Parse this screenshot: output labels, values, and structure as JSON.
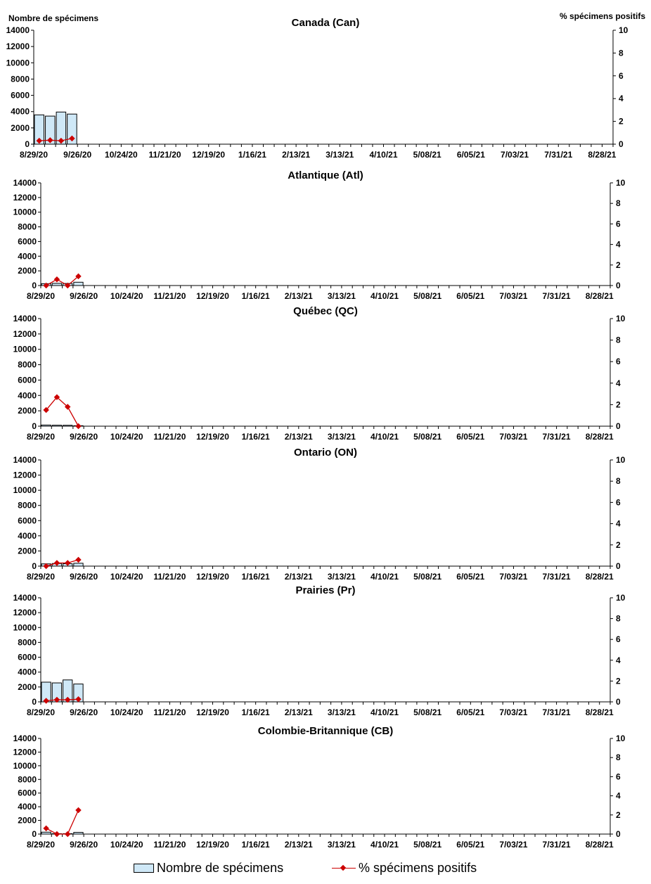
{
  "chart_data": [
    {
      "type": "bar+line",
      "title": "Canada (Can)",
      "ylabel_left": "Nombre de spécimens",
      "ylabel_right": "% spécimens positifs",
      "ylim_left": [
        0,
        14000
      ],
      "ylim_right": [
        0,
        10
      ],
      "left_ticks": [
        "0",
        "2000",
        "4000",
        "6000",
        "8000",
        "10000",
        "12000",
        "14000"
      ],
      "right_ticks": [
        "0",
        "2",
        "4",
        "6",
        "8",
        "10"
      ],
      "x_tick_labels": [
        "8/29/20",
        "9/26/20",
        "10/24/20",
        "11/21/20",
        "12/19/20",
        "1/16/21",
        "2/13/21",
        "3/13/21",
        "4/10/21",
        "5/08/21",
        "6/05/21",
        "7/03/21",
        "7/31/21",
        "8/28/21"
      ],
      "weeks": 53,
      "series": [
        {
          "name": "Nombre de spécimens",
          "type": "bar",
          "values": [
            3600,
            3450,
            3950,
            3700
          ]
        },
        {
          "name": "% spécimens positifs",
          "type": "line",
          "values": [
            0.3,
            0.35,
            0.3,
            0.5
          ]
        }
      ]
    },
    {
      "type": "bar+line",
      "title": "Atlantique (Atl)",
      "ylim_left": [
        0,
        14000
      ],
      "ylim_right": [
        0,
        10
      ],
      "left_ticks": [
        "0",
        "2000",
        "4000",
        "6000",
        "8000",
        "10000",
        "12000",
        "14000"
      ],
      "right_ticks": [
        "0",
        "2",
        "4",
        "6",
        "8",
        "10"
      ],
      "x_tick_labels": [
        "8/29/20",
        "9/26/20",
        "10/24/20",
        "11/21/20",
        "12/19/20",
        "1/16/21",
        "2/13/21",
        "3/13/21",
        "4/10/21",
        "5/08/21",
        "6/05/21",
        "7/03/21",
        "7/31/21",
        "8/28/21"
      ],
      "weeks": 53,
      "series": [
        {
          "name": "Nombre de spécimens",
          "type": "bar",
          "values": [
            250,
            300,
            280,
            450
          ]
        },
        {
          "name": "% spécimens positifs",
          "type": "line",
          "values": [
            0.0,
            0.6,
            0.0,
            0.9
          ]
        }
      ]
    },
    {
      "type": "bar+line",
      "title": "Québec (QC)",
      "ylim_left": [
        0,
        14000
      ],
      "ylim_right": [
        0,
        10
      ],
      "left_ticks": [
        "0",
        "2000",
        "4000",
        "6000",
        "8000",
        "10000",
        "12000",
        "14000"
      ],
      "right_ticks": [
        "0",
        "2",
        "4",
        "6",
        "8",
        "10"
      ],
      "x_tick_labels": [
        "8/29/20",
        "9/26/20",
        "10/24/20",
        "11/21/20",
        "12/19/20",
        "1/16/21",
        "2/13/21",
        "3/13/21",
        "4/10/21",
        "5/08/21",
        "6/05/21",
        "7/03/21",
        "7/31/21",
        "8/28/21"
      ],
      "weeks": 53,
      "series": [
        {
          "name": "Nombre de spécimens",
          "type": "bar",
          "values": [
            150,
            130,
            120,
            60
          ]
        },
        {
          "name": "% spécimens positifs",
          "type": "line",
          "values": [
            1.5,
            2.7,
            1.8,
            0.0
          ]
        }
      ]
    },
    {
      "type": "bar+line",
      "title": "Ontario (ON)",
      "ylim_left": [
        0,
        14000
      ],
      "ylim_right": [
        0,
        10
      ],
      "left_ticks": [
        "0",
        "2000",
        "4000",
        "6000",
        "8000",
        "10000",
        "12000",
        "14000"
      ],
      "right_ticks": [
        "0",
        "2",
        "4",
        "6",
        "8",
        "10"
      ],
      "x_tick_labels": [
        "8/29/20",
        "9/26/20",
        "10/24/20",
        "11/21/20",
        "12/19/20",
        "1/16/21",
        "2/13/21",
        "3/13/21",
        "4/10/21",
        "5/08/21",
        "6/05/21",
        "7/03/21",
        "7/31/21",
        "8/28/21"
      ],
      "weeks": 53,
      "series": [
        {
          "name": "Nombre de spécimens",
          "type": "bar",
          "values": [
            300,
            350,
            320,
            380
          ]
        },
        {
          "name": "% spécimens positifs",
          "type": "line",
          "values": [
            0.0,
            0.3,
            0.3,
            0.6
          ]
        }
      ]
    },
    {
      "type": "bar+line",
      "title": "Prairies (Pr)",
      "ylim_left": [
        0,
        14000
      ],
      "ylim_right": [
        0,
        10
      ],
      "left_ticks": [
        "0",
        "2000",
        "4000",
        "6000",
        "8000",
        "10000",
        "12000",
        "14000"
      ],
      "right_ticks": [
        "0",
        "2",
        "4",
        "6",
        "8",
        "10"
      ],
      "x_tick_labels": [
        "8/29/20",
        "9/26/20",
        "10/24/20",
        "11/21/20",
        "12/19/20",
        "1/16/21",
        "2/13/21",
        "3/13/21",
        "4/10/21",
        "5/08/21",
        "6/05/21",
        "7/03/21",
        "7/31/21",
        "8/28/21"
      ],
      "weeks": 53,
      "series": [
        {
          "name": "Nombre de spécimens",
          "type": "bar",
          "values": [
            2650,
            2550,
            2950,
            2400
          ]
        },
        {
          "name": "% spécimens positifs",
          "type": "line",
          "values": [
            0.1,
            0.2,
            0.2,
            0.25
          ]
        }
      ]
    },
    {
      "type": "bar+line",
      "title": "Colombie-Britannique (CB)",
      "ylim_left": [
        0,
        14000
      ],
      "ylim_right": [
        0,
        10
      ],
      "left_ticks": [
        "0",
        "2000",
        "4000",
        "6000",
        "8000",
        "10000",
        "12000",
        "14000"
      ],
      "right_ticks": [
        "0",
        "2",
        "4",
        "6",
        "8",
        "10"
      ],
      "x_tick_labels": [
        "8/29/20",
        "9/26/20",
        "10/24/20",
        "11/21/20",
        "12/19/20",
        "1/16/21",
        "2/13/21",
        "3/13/21",
        "4/10/21",
        "5/08/21",
        "6/05/21",
        "7/03/21",
        "7/31/21",
        "8/28/21"
      ],
      "weeks": 53,
      "series": [
        {
          "name": "Nombre de spécimens",
          "type": "bar",
          "values": [
            280,
            60,
            60,
            250
          ]
        },
        {
          "name": "% spécimens positifs",
          "type": "line",
          "values": [
            0.6,
            0.0,
            0.0,
            2.5
          ]
        }
      ]
    }
  ],
  "legend": {
    "bar_label": "Nombre de spécimens",
    "line_label": "% spécimens positifs"
  },
  "colors": {
    "bar_fill": "#cfe8f7",
    "bar_stroke": "#000000",
    "line": "#cc0000"
  }
}
